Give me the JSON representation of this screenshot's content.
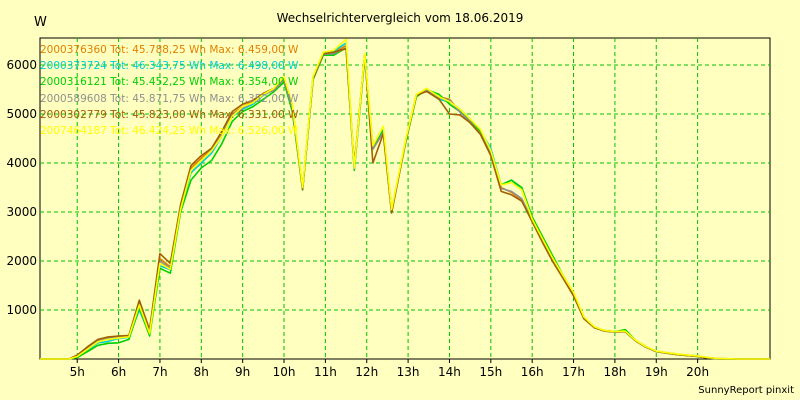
{
  "header": {
    "title": "Wechselrichtervergleich vom 18.06.2019",
    "yunit": "W"
  },
  "footer": {
    "text": "SunnyReport pinxit"
  },
  "colors": {
    "background": "#ffffc0",
    "grid": "#00c000",
    "axis": "#000000",
    "series": [
      "#e08000",
      "#00d0d0",
      "#00d000",
      "#909090",
      "#a06000",
      "#ffff00"
    ]
  },
  "chart_data": {
    "type": "line",
    "title": "Wechselrichtervergleich vom 18.06.2019",
    "ylabel": "W",
    "xlabel": "",
    "x_ticks": [
      "5h",
      "6h",
      "7h",
      "8h",
      "9h",
      "10h",
      "11h",
      "12h",
      "13h",
      "14h",
      "15h",
      "16h",
      "17h",
      "18h",
      "19h",
      "20h"
    ],
    "y_ticks": [
      1000,
      2000,
      3000,
      4000,
      5000,
      6000
    ],
    "xlim": [
      4.1,
      21.75
    ],
    "ylim": [
      0,
      6550
    ],
    "grid": true,
    "legend_position": "top-left",
    "series": [
      {
        "name": "2000376360",
        "legend": "2000376360 Tot: 45.788,25 Wh Max: 6.459,00 W",
        "x": [
          4.1,
          4.8,
          5.0,
          5.25,
          5.5,
          5.75,
          6.0,
          6.25,
          6.5,
          6.75,
          7.0,
          7.25,
          7.5,
          7.75,
          8.0,
          8.25,
          8.5,
          8.75,
          9.0,
          9.25,
          9.5,
          9.75,
          10.0,
          10.2,
          10.45,
          10.7,
          10.95,
          11.2,
          11.5,
          11.7,
          11.95,
          12.15,
          12.4,
          12.6,
          12.95,
          13.2,
          13.45,
          13.75,
          14.0,
          14.25,
          14.5,
          14.75,
          15.0,
          15.25,
          15.5,
          15.75,
          16.0,
          16.25,
          16.5,
          16.75,
          17.0,
          17.25,
          17.5,
          17.75,
          18.0,
          18.25,
          18.5,
          18.75,
          19.0,
          19.5,
          20.0,
          20.25,
          20.5,
          21.0,
          21.75
        ],
        "y": [
          0,
          0,
          70,
          230,
          390,
          440,
          460,
          470,
          1180,
          580,
          2050,
          1880,
          3100,
          3900,
          4100,
          4300,
          4600,
          5000,
          5150,
          5250,
          5400,
          5500,
          5700,
          5150,
          3450,
          5700,
          6200,
          6250,
          6400,
          3900,
          6200,
          4300,
          4650,
          3000,
          4500,
          5400,
          5500,
          5350,
          5300,
          5050,
          4850,
          4600,
          4200,
          3500,
          3400,
          3250,
          2800,
          2400,
          2000,
          1650,
          1300,
          850,
          650,
          580,
          560,
          570,
          380,
          250,
          160,
          100,
          60,
          30,
          10,
          0,
          0
        ]
      },
      {
        "name": "2000373724",
        "legend": "2000373724 Tot: 46.343,75 Wh Max: 6.498,00 W",
        "x": [
          4.1,
          4.8,
          5.0,
          5.25,
          5.5,
          5.75,
          6.0,
          6.25,
          6.5,
          6.75,
          7.0,
          7.25,
          7.5,
          7.75,
          8.0,
          8.25,
          8.5,
          8.75,
          9.0,
          9.25,
          9.5,
          9.75,
          10.0,
          10.2,
          10.45,
          10.7,
          10.95,
          11.2,
          11.5,
          11.7,
          11.95,
          12.15,
          12.4,
          12.6,
          12.95,
          13.2,
          13.45,
          13.75,
          14.0,
          14.25,
          14.5,
          14.75,
          15.0,
          15.25,
          15.5,
          15.75,
          16.0,
          16.25,
          16.5,
          16.75,
          17.0,
          17.25,
          17.5,
          17.75,
          18.0,
          18.25,
          18.5,
          18.75,
          19.0,
          19.5,
          20.0,
          20.25,
          20.5,
          21.0,
          21.75
        ],
        "y": [
          0,
          0,
          40,
          170,
          330,
          360,
          420,
          440,
          1000,
          500,
          1900,
          1820,
          3050,
          3800,
          4000,
          4200,
          4550,
          4950,
          5100,
          5200,
          5380,
          5500,
          5720,
          5100,
          3480,
          5750,
          6250,
          6280,
          6450,
          3880,
          6180,
          4350,
          4700,
          3050,
          4450,
          5380,
          5520,
          5300,
          5250,
          5100,
          4900,
          4650,
          4300,
          3550,
          3650,
          3450,
          2850,
          2450,
          2050,
          1700,
          1350,
          850,
          650,
          570,
          550,
          560,
          370,
          240,
          150,
          90,
          50,
          20,
          5,
          0,
          0
        ]
      },
      {
        "name": "2000316121",
        "legend": "2000316121 Tot: 45.452,25 Wh Max: 6.354,00 W",
        "x": [
          4.1,
          4.8,
          5.0,
          5.25,
          5.5,
          5.75,
          6.0,
          6.25,
          6.5,
          6.75,
          7.0,
          7.25,
          7.5,
          7.75,
          8.0,
          8.25,
          8.5,
          8.75,
          9.0,
          9.25,
          9.5,
          9.75,
          10.0,
          10.2,
          10.45,
          10.7,
          10.95,
          11.2,
          11.5,
          11.7,
          11.95,
          12.15,
          12.4,
          12.6,
          12.95,
          13.2,
          13.45,
          13.75,
          14.0,
          14.25,
          14.5,
          14.75,
          15.0,
          15.25,
          15.5,
          15.75,
          16.0,
          16.25,
          16.5,
          16.75,
          17.0,
          17.25,
          17.5,
          17.75,
          18.0,
          18.25,
          18.5,
          18.75,
          19.0,
          19.5,
          20.0,
          20.25,
          20.5,
          21.0,
          21.75
        ],
        "y": [
          0,
          0,
          30,
          150,
          280,
          320,
          330,
          400,
          1050,
          470,
          1850,
          1750,
          3000,
          3650,
          3900,
          4050,
          4400,
          4850,
          5050,
          5150,
          5300,
          5450,
          5650,
          5050,
          3450,
          5700,
          6200,
          6200,
          6350,
          3850,
          6150,
          4300,
          4650,
          3000,
          4450,
          5350,
          5500,
          5400,
          5200,
          5050,
          4850,
          4650,
          4250,
          3550,
          3650,
          3500,
          2900,
          2500,
          2100,
          1700,
          1350,
          850,
          650,
          580,
          560,
          600,
          380,
          250,
          150,
          90,
          50,
          20,
          5,
          0,
          0
        ]
      },
      {
        "name": "2000589608",
        "legend": "2000589608 Tot: 45.871,75 Wh Max: 6.352,00 W",
        "x": [
          4.1,
          4.8,
          5.0,
          5.25,
          5.5,
          5.75,
          6.0,
          6.25,
          6.5,
          6.75,
          7.0,
          7.25,
          7.5,
          7.75,
          8.0,
          8.25,
          8.5,
          8.75,
          9.0,
          9.25,
          9.5,
          9.75,
          10.0,
          10.2,
          10.45,
          10.7,
          10.95,
          11.2,
          11.5,
          11.7,
          11.95,
          12.15,
          12.4,
          12.6,
          12.95,
          13.2,
          13.45,
          13.75,
          14.0,
          14.25,
          14.5,
          14.75,
          15.0,
          15.25,
          15.5,
          15.75,
          16.0,
          16.25,
          16.5,
          16.75,
          17.0,
          17.25,
          17.5,
          17.75,
          18.0,
          18.25,
          18.5,
          18.75,
          19.0,
          19.5,
          20.0,
          20.25,
          20.5,
          21.0,
          21.75
        ],
        "y": [
          0,
          0,
          60,
          210,
          370,
          420,
          450,
          460,
          1150,
          560,
          2000,
          1850,
          3080,
          3850,
          4050,
          4250,
          4580,
          4980,
          5120,
          5230,
          5390,
          5480,
          5690,
          5120,
          3460,
          5720,
          6220,
          6230,
          6352,
          3880,
          6180,
          4280,
          4620,
          3000,
          4480,
          5380,
          5480,
          5330,
          5280,
          5040,
          4840,
          4590,
          4190,
          3480,
          3420,
          3270,
          2820,
          2420,
          2020,
          1660,
          1310,
          840,
          640,
          570,
          550,
          560,
          370,
          245,
          155,
          95,
          55,
          25,
          8,
          0,
          0
        ]
      },
      {
        "name": "2000302779",
        "legend": "2000302779 Tot: 45.823,00 Wh Max: 6.331,00 W",
        "x": [
          4.1,
          4.8,
          5.0,
          5.25,
          5.5,
          5.75,
          6.0,
          6.25,
          6.5,
          6.75,
          7.0,
          7.25,
          7.5,
          7.75,
          8.0,
          8.25,
          8.5,
          8.75,
          9.0,
          9.25,
          9.5,
          9.75,
          10.0,
          10.2,
          10.45,
          10.7,
          10.95,
          11.2,
          11.5,
          11.7,
          11.95,
          12.15,
          12.4,
          12.6,
          12.95,
          13.2,
          13.45,
          13.75,
          14.0,
          14.25,
          14.5,
          14.75,
          15.0,
          15.25,
          15.5,
          15.75,
          16.0,
          16.25,
          16.5,
          16.75,
          17.0,
          17.25,
          17.5,
          17.75,
          18.0,
          18.25,
          18.5,
          18.75,
          19.0,
          19.5,
          20.0,
          20.25,
          20.5,
          21.0,
          21.75
        ],
        "y": [
          0,
          0,
          80,
          250,
          400,
          450,
          470,
          480,
          1200,
          600,
          2150,
          1950,
          3150,
          3950,
          4150,
          4300,
          4650,
          5050,
          5200,
          5280,
          5420,
          5520,
          5750,
          5180,
          3470,
          5730,
          6230,
          6260,
          6331,
          3950,
          6210,
          4000,
          4600,
          2980,
          4470,
          5380,
          5460,
          5300,
          5000,
          4980,
          4820,
          4580,
          4150,
          3420,
          3350,
          3220,
          2800,
          2380,
          1980,
          1640,
          1290,
          820,
          640,
          570,
          550,
          560,
          370,
          240,
          150,
          90,
          50,
          20,
          5,
          0,
          0
        ]
      },
      {
        "name": "2007464187",
        "legend": "2007464187 Tot: 46.424,25 Wh Max: 6.526,00 W",
        "x": [
          4.1,
          4.8,
          5.0,
          5.25,
          5.5,
          5.75,
          6.0,
          6.25,
          6.5,
          6.75,
          7.0,
          7.25,
          7.5,
          7.75,
          8.0,
          8.25,
          8.5,
          8.75,
          9.0,
          9.25,
          9.5,
          9.75,
          10.0,
          10.2,
          10.45,
          10.7,
          10.95,
          11.2,
          11.5,
          11.7,
          11.95,
          12.15,
          12.4,
          12.6,
          12.95,
          13.2,
          13.45,
          13.75,
          14.0,
          14.25,
          14.5,
          14.75,
          15.0,
          15.25,
          15.5,
          15.75,
          16.0,
          16.25,
          16.5,
          16.75,
          17.0,
          17.25,
          17.5,
          17.75,
          18.0,
          18.25,
          18.5,
          18.75,
          19.0,
          19.5,
          20.0,
          20.25,
          20.5,
          21.0,
          21.75
        ],
        "y": [
          0,
          0,
          50,
          200,
          350,
          400,
          430,
          450,
          1100,
          520,
          1950,
          1830,
          3050,
          3850,
          4050,
          4250,
          4550,
          4950,
          5150,
          5230,
          5400,
          5520,
          5760,
          5200,
          3500,
          5760,
          6260,
          6300,
          6526,
          3900,
          6230,
          4350,
          4750,
          3050,
          4500,
          5400,
          5520,
          5350,
          5250,
          5100,
          4900,
          4680,
          4250,
          3550,
          3600,
          3450,
          2850,
          2450,
          2050,
          1700,
          1360,
          860,
          660,
          580,
          560,
          570,
          380,
          250,
          160,
          100,
          60,
          30,
          10,
          0,
          0
        ]
      }
    ]
  }
}
